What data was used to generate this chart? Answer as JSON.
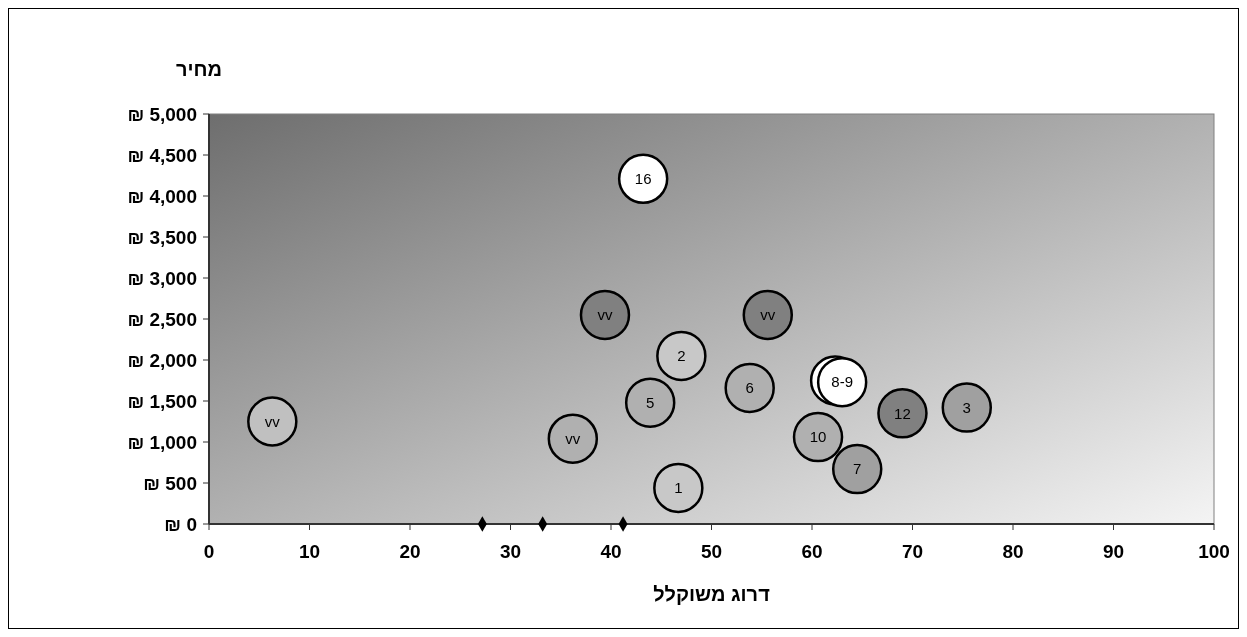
{
  "chart_data": {
    "type": "bubble",
    "xlabel": "דרוג משוקלל",
    "ylabel": "מחיר",
    "xlim": [
      0,
      100
    ],
    "xticks": [
      0,
      10,
      20,
      30,
      40,
      50,
      60,
      70,
      80,
      90,
      100
    ],
    "ylim": [
      0,
      5000
    ],
    "yticks": [
      {
        "value": 0,
        "label": "₪ 0"
      },
      {
        "value": 500,
        "label": "₪ 500"
      },
      {
        "value": 1000,
        "label": "₪ 1,000"
      },
      {
        "value": 1500,
        "label": "₪ 1,500"
      },
      {
        "value": 2000,
        "label": "₪ 2,000"
      },
      {
        "value": 2500,
        "label": "₪ 2,500"
      },
      {
        "value": 3000,
        "label": "₪ 3,000"
      },
      {
        "value": 3500,
        "label": "₪ 3,500"
      },
      {
        "value": 4000,
        "label": "₪ 4,000"
      },
      {
        "value": 4500,
        "label": "₪ 4,500"
      },
      {
        "value": 5000,
        "label": "₪ 5,000"
      }
    ],
    "grid": false,
    "series": [
      {
        "x": [
          6.3,
          39.4,
          55.6,
          36.2,
          43.2,
          47,
          43.9,
          53.8,
          46.7,
          60.6,
          64.5,
          62.3,
          63,
          69,
          75.4
        ],
        "values": [
          1250,
          2550,
          2550,
          1040,
          4210,
          2050,
          1480,
          1660,
          440,
          1060,
          670,
          1750,
          1730,
          1350,
          1420
        ],
        "sizes": [
          1,
          1,
          1,
          1,
          1,
          1,
          1,
          1,
          1,
          1,
          1,
          1,
          1,
          1,
          1
        ],
        "colors": [
          "#c0c0c0",
          "#808080",
          "#808080",
          "#b0b0b0",
          "#ffffff",
          "#c8c8c8",
          "#b0b0b0",
          "#b0b0b0",
          "#c8c8c8",
          "#b0b0b0",
          "#a0a0a0",
          "#ffffff",
          "#ffffff",
          "#808080",
          "#a0a0a0"
        ]
      },
      {
        "type": "scatter",
        "marker": "diamond",
        "color": "#000000",
        "x": [
          27.2,
          33.2,
          41.2
        ],
        "values": [
          0,
          0,
          0
        ]
      }
    ],
    "annotations": [
      {
        "text": "vv",
        "x": 6.3,
        "y": 1250
      },
      {
        "text": "vv",
        "x": 39.4,
        "y": 2550
      },
      {
        "text": "vv",
        "x": 55.6,
        "y": 2550
      },
      {
        "text": "vv",
        "x": 36.2,
        "y": 1040
      },
      {
        "text": "16",
        "x": 43.2,
        "y": 4210
      },
      {
        "text": "2",
        "x": 47,
        "y": 2050
      },
      {
        "text": "5",
        "x": 43.9,
        "y": 1480
      },
      {
        "text": "6",
        "x": 53.8,
        "y": 1660
      },
      {
        "text": "1",
        "x": 46.7,
        "y": 440
      },
      {
        "text": "10",
        "x": 60.6,
        "y": 1060
      },
      {
        "text": "7",
        "x": 64.5,
        "y": 670
      },
      {
        "text": "8-9",
        "x": 63,
        "y": 1730
      },
      {
        "text": "12",
        "x": 69,
        "y": 1350
      },
      {
        "text": "3",
        "x": 75.4,
        "y": 1420
      }
    ]
  }
}
